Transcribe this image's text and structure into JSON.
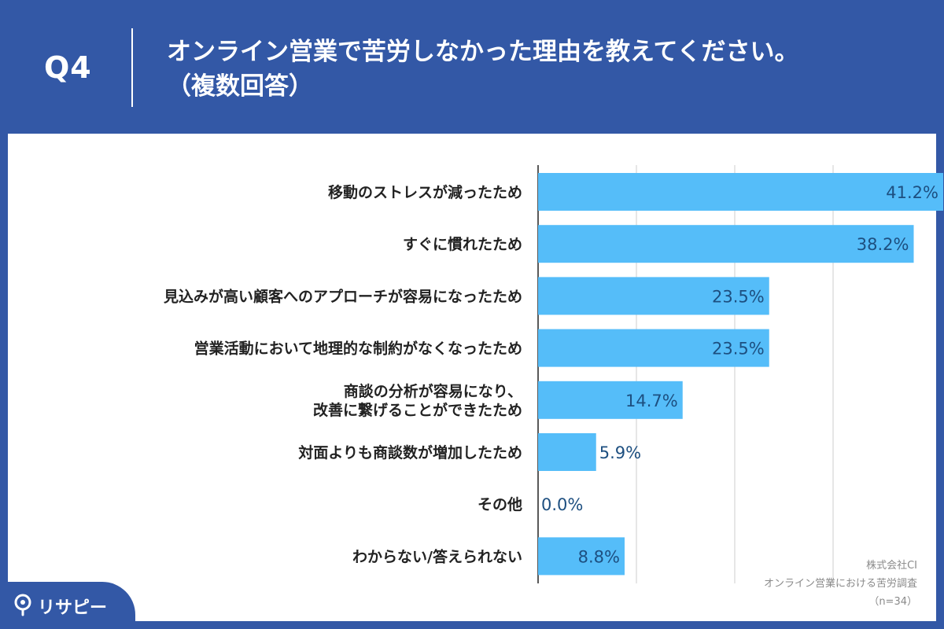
{
  "header": {
    "question_number": "Q4",
    "title": "オンライン営業で苦労しなかった理由を教えてください。\n（複数回答）"
  },
  "chart_data": {
    "type": "bar",
    "orientation": "horizontal",
    "title": "オンライン営業で苦労しなかった理由を教えてください。（複数回答）",
    "categories": [
      "移動のストレスが減ったため",
      "すぐに慣れたため",
      "見込みが高い顧客へのアプローチが容易になったため",
      "営業活動において地理的な制約がなくなったため",
      "商談の分析が容易になり、\n改善に繋げることができたため",
      "対面よりも商談数が増加したため",
      "その他",
      "わからない/答えられない"
    ],
    "values": [
      41.2,
      38.2,
      23.5,
      23.5,
      14.7,
      5.9,
      0.0,
      8.8
    ],
    "value_labels": [
      "41.2%",
      "38.2%",
      "23.5%",
      "23.5%",
      "14.7%",
      "5.9%",
      "0.0%",
      "8.8%"
    ],
    "unit": "%",
    "xlim": [
      0,
      50
    ],
    "grid": true,
    "bar_color": "#55bdf9",
    "label_color": "#1d4f80"
  },
  "source_note": [
    "株式会社CI",
    "オンライン営業における苦労調査",
    "（n=34）"
  ],
  "logo": {
    "text": "リサピー",
    "icon": "map-pin-icon"
  },
  "colors": {
    "header_bg": "#3358a6",
    "panel_bg": "#ffffff",
    "grid": "#cccccc"
  }
}
